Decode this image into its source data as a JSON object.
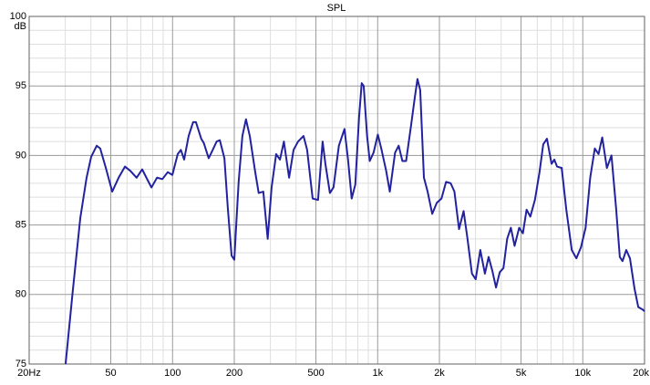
{
  "chart_data": {
    "type": "line",
    "title": "SPL",
    "y_unit": "dB",
    "x_scale": "log",
    "grid": true,
    "xlim": [
      20,
      20000
    ],
    "ylim": [
      75,
      100
    ],
    "xticks": [
      {
        "value": 20,
        "label": "20Hz"
      },
      50,
      100,
      200,
      500,
      {
        "value": 1000,
        "label": "1k"
      },
      {
        "value": 2000,
        "label": "2k"
      },
      {
        "value": 5000,
        "label": "5k"
      },
      {
        "value": 10000,
        "label": "10k"
      },
      {
        "value": 20000,
        "label": "20k"
      }
    ],
    "yticks": [
      75,
      80,
      85,
      90,
      95,
      100
    ],
    "x_minor_ticks": [
      30,
      40,
      60,
      70,
      80,
      90,
      300,
      400,
      600,
      700,
      800,
      900,
      3000,
      4000,
      6000,
      7000,
      8000,
      9000
    ],
    "y_minor_ticks": [
      76,
      77,
      78,
      79,
      81,
      82,
      83,
      84,
      86,
      87,
      88,
      89,
      91,
      92,
      93,
      94,
      96,
      97,
      98,
      99
    ],
    "series": [
      {
        "name": "SPL",
        "color": "#2222a0",
        "x": [
          30.1,
          32.6,
          35.5,
          38.1,
          40.1,
          42.7,
          44.4,
          47.3,
          50.8,
          54.6,
          58.6,
          62.2,
          66.8,
          71.1,
          76.4,
          78.9,
          84,
          89.2,
          94.8,
          99.8,
          106,
          109.8,
          113.9,
          119.8,
          126,
          130,
          138,
          142,
          150,
          157,
          164,
          170,
          179,
          186,
          194,
          200,
          210,
          219,
          228,
          238,
          253,
          263,
          277,
          291,
          304,
          320,
          334,
          349,
          370,
          389,
          409,
          435,
          453,
          482,
          512,
          539,
          556,
          585,
          609,
          647,
          689,
          717,
          747,
          778,
          811,
          836,
          855,
          888,
          915,
          955,
          1002,
          1045,
          1100,
          1146,
          1216,
          1266,
          1320,
          1376,
          1453,
          1515,
          1563,
          1612,
          1681,
          1752,
          1845,
          1943,
          2047,
          2155,
          2270,
          2367,
          2493,
          2624,
          2736,
          2882,
          3005,
          3165,
          3333,
          3475,
          3623,
          3776,
          3937,
          4104,
          4279,
          4461,
          4650,
          4897,
          5105,
          5322,
          5548,
          5843,
          6153,
          6415,
          6688,
          7044,
          7266,
          7494,
          7892,
          8312,
          8836,
          9305,
          9800,
          10321,
          10869,
          11447,
          11934,
          12442,
          13104,
          13801,
          14535,
          15153,
          15624,
          16288,
          16982,
          17884,
          18645,
          19636,
          20000
        ],
        "values": [
          75,
          80.2,
          85.5,
          88.4,
          89.9,
          90.7,
          90.5,
          89.1,
          87.4,
          88.4,
          89.2,
          88.9,
          88.4,
          89.0,
          88.1,
          87.7,
          88.4,
          88.3,
          88.8,
          88.6,
          90.1,
          90.4,
          89.7,
          91.4,
          92.4,
          92.4,
          91.2,
          90.9,
          89.8,
          90.4,
          91.0,
          91.1,
          89.8,
          86.2,
          82.8,
          82.5,
          88.1,
          91.4,
          92.6,
          91.4,
          88.8,
          87.3,
          87.4,
          84.0,
          87.7,
          90.1,
          89.7,
          91.0,
          88.4,
          90.4,
          91.0,
          91.4,
          90.4,
          86.9,
          86.8,
          91.0,
          89.4,
          87.3,
          87.7,
          90.7,
          91.9,
          89.7,
          86.9,
          87.9,
          92.7,
          95.2,
          95.0,
          91.4,
          89.6,
          90.2,
          91.5,
          90.4,
          88.9,
          87.4,
          90.2,
          90.7,
          89.6,
          89.6,
          92.1,
          94.1,
          95.5,
          94.7,
          88.4,
          87.4,
          85.8,
          86.6,
          86.9,
          88.1,
          88.0,
          87.4,
          84.7,
          86.0,
          84.1,
          81.5,
          81.1,
          83.2,
          81.5,
          82.7,
          81.7,
          80.5,
          81.6,
          81.9,
          84.0,
          84.8,
          83.5,
          84.8,
          84.4,
          86.1,
          85.6,
          86.8,
          88.8,
          90.8,
          91.2,
          89.4,
          89.7,
          89.2,
          89.1,
          86.1,
          83.2,
          82.6,
          83.4,
          84.8,
          88.4,
          90.5,
          90.1,
          91.3,
          89.1,
          90.0,
          86.2,
          82.7,
          82.4,
          83.2,
          82.6,
          80.4,
          79.1,
          78.9,
          78.8
        ]
      }
    ]
  }
}
